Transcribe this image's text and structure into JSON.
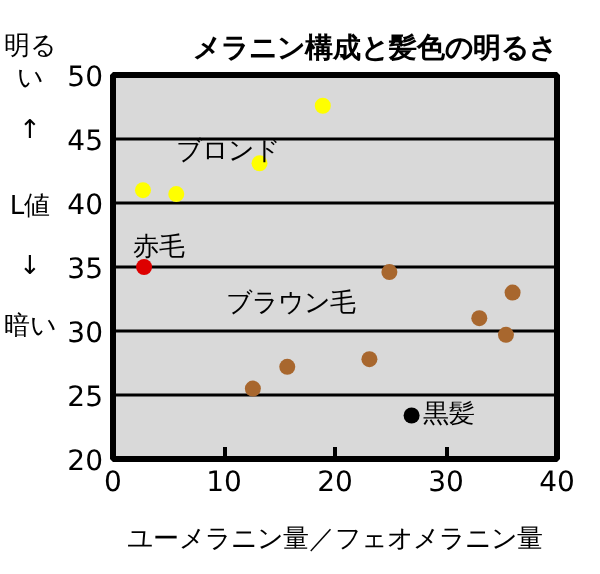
{
  "chart_data": {
    "type": "scatter",
    "title": "メラニン構成と髪色の明るさ",
    "xlabel": "ユーメラニン量／フェオメラニン量",
    "ylabel": "明るい ↑ L値 ↓ 暗い",
    "series": [
      {
        "name": "ブロンド",
        "color": "#ffff00",
        "x": [
          2.7,
          5.7,
          13.2,
          18.9
        ],
        "values": [
          41.0,
          40.7,
          43.1,
          47.6
        ]
      },
      {
        "name": "赤毛",
        "color": "#dd0000",
        "x": [
          2.8
        ],
        "values": [
          35.0
        ]
      },
      {
        "name": "ブラウン毛",
        "color": "#a8672e",
        "x": [
          24.9,
          36.0,
          33.0,
          35.4,
          12.6,
          15.7,
          23.1
        ],
        "values": [
          34.6,
          33.0,
          31.0,
          29.7,
          25.5,
          27.2,
          27.8
        ]
      },
      {
        "name": "黒髪",
        "color": "#000000",
        "x": [
          26.9
        ],
        "values": [
          23.4
        ]
      }
    ],
    "xlim": [
      0,
      40
    ],
    "ylim": [
      20,
      50
    ],
    "xticks": [
      0,
      10,
      20,
      30,
      40
    ],
    "yticks": [
      20,
      25,
      30,
      35,
      40,
      45,
      50
    ],
    "grid": "y",
    "marker": "circle"
  }
}
